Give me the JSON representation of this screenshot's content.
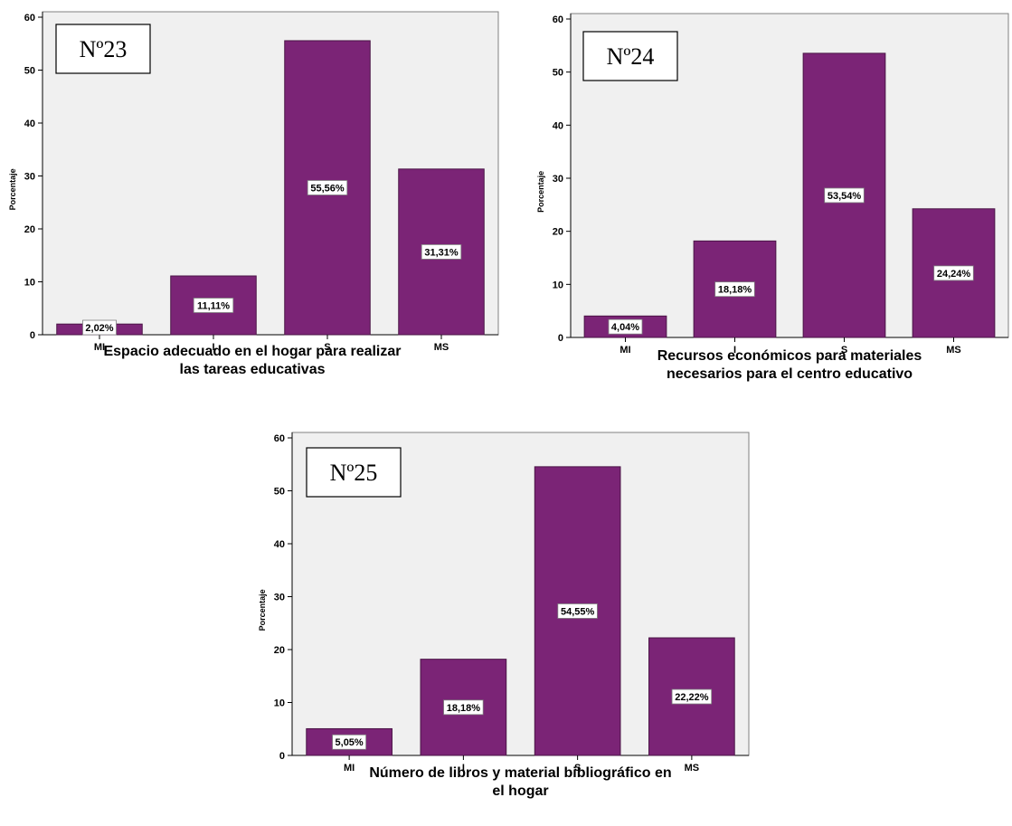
{
  "colors": {
    "bar": "#7b2476",
    "plot_bg": "#f0f0f0",
    "axis": "#000000",
    "frame": "#808080"
  },
  "chart_data": [
    {
      "type": "bar",
      "badge": "Nº23",
      "categories": [
        "MI",
        "I",
        "S",
        "MS"
      ],
      "values": [
        2.02,
        11.11,
        55.56,
        31.31
      ],
      "data_labels": [
        "2,02%",
        "11,11%",
        "55,56%",
        "31,31%"
      ],
      "ylabel": "Porcentaje",
      "xlabel_lines": [
        "Espacio adecuado en el hogar para realizar",
        "las tareas educativas"
      ],
      "yticks": [
        0,
        10,
        20,
        30,
        40,
        50,
        60
      ],
      "ylim": [
        0,
        60
      ],
      "grid": false
    },
    {
      "type": "bar",
      "badge": "Nº24",
      "categories": [
        "MI",
        "I",
        "S",
        "MS"
      ],
      "values": [
        4.04,
        18.18,
        53.54,
        24.24
      ],
      "data_labels": [
        "4,04%",
        "18,18%",
        "53,54%",
        "24,24%"
      ],
      "ylabel": "Porcentaje",
      "xlabel_lines": [
        "Recursos económicos para materiales",
        "necesarios para el centro educativo"
      ],
      "yticks": [
        0,
        10,
        20,
        30,
        40,
        50,
        60
      ],
      "ylim": [
        0,
        60
      ],
      "grid": false
    },
    {
      "type": "bar",
      "badge": "Nº25",
      "categories": [
        "MI",
        "I",
        "S",
        "MS"
      ],
      "values": [
        5.05,
        18.18,
        54.55,
        22.22
      ],
      "data_labels": [
        "5,05%",
        "18,18%",
        "54,55%",
        "22,22%"
      ],
      "ylabel": "Porcentaje",
      "xlabel_lines": [
        "Número de libros y material bibliográfico en",
        "el hogar"
      ],
      "yticks": [
        0,
        10,
        20,
        30,
        40,
        50,
        60
      ],
      "ylim": [
        0,
        60
      ],
      "grid": false
    }
  ]
}
